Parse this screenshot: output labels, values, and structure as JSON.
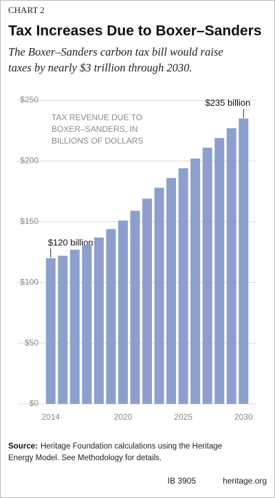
{
  "chart_data": {
    "type": "bar",
    "kicker": "CHART 2",
    "title": "Tax Increases Due to Boxer–Sanders",
    "subtitle": [
      "The Boxer–Sanders carbon tax bill would raise",
      "taxes by nearly $3 trillion through 2030."
    ],
    "y_label": [
      "TAX REVENUE DUE TO",
      "BOXER–SANDERS, IN",
      "BILLIONS OF DOLLARS"
    ],
    "x": [
      2014,
      2015,
      2016,
      2017,
      2018,
      2019,
      2020,
      2021,
      2022,
      2023,
      2024,
      2025,
      2026,
      2027,
      2028,
      2029,
      2030
    ],
    "values": [
      120,
      122,
      127,
      131,
      137,
      144,
      151,
      159,
      169,
      178,
      186,
      194,
      202,
      211,
      219,
      227,
      235
    ],
    "value_labels": [
      "$120 billion",
      null,
      null,
      null,
      null,
      null,
      null,
      null,
      null,
      null,
      null,
      null,
      null,
      null,
      null,
      null,
      "$235 billion"
    ],
    "color": "#8d9fcd",
    "xlim": [
      2013.5,
      2030.5
    ],
    "xticks": [
      2014,
      2020,
      2025,
      2030
    ],
    "ylim": [
      0,
      250
    ],
    "yticks": [
      {
        "value": 0,
        "label": "$0"
      },
      {
        "value": 50,
        "label": "$50"
      },
      {
        "value": 100,
        "label": "$100"
      },
      {
        "value": 150,
        "label": "$150"
      },
      {
        "value": 200,
        "label": "$200"
      },
      {
        "value": 250,
        "label": "$250"
      }
    ],
    "grid": true,
    "source_label": "Source:",
    "source": [
      "Heritage Foundation calculations using the Heritage",
      "Energy Model. See Methodology for details."
    ],
    "id": "IB 3905",
    "site": "heritage.org"
  }
}
